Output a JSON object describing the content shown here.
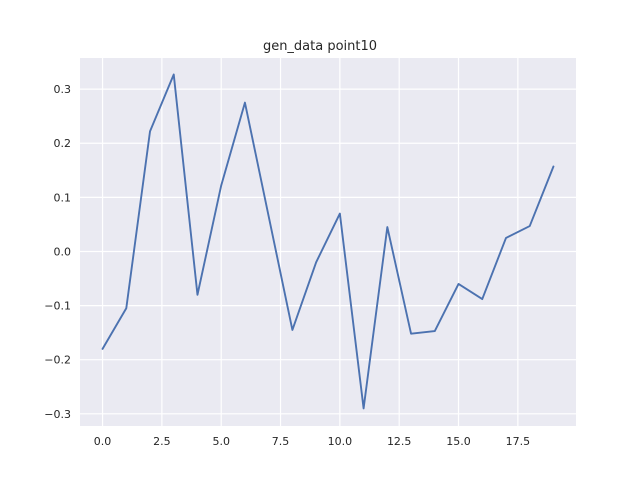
{
  "chart_data": {
    "type": "line",
    "title": "gen_data point10",
    "xlabel": "",
    "ylabel": "",
    "xlim": [
      -0.95,
      19.95
    ],
    "ylim": [
      -0.3225,
      0.3575
    ],
    "xticks": [
      0.0,
      2.5,
      5.0,
      7.5,
      10.0,
      12.5,
      15.0,
      17.5
    ],
    "xtick_labels": [
      "0.0",
      "2.5",
      "5.0",
      "7.5",
      "10.0",
      "12.5",
      "15.0",
      "17.5"
    ],
    "yticks": [
      -0.3,
      -0.2,
      -0.1,
      0.0,
      0.1,
      0.2,
      0.3
    ],
    "ytick_labels": [
      "−0.3",
      "−0.2",
      "−0.1",
      "0.0",
      "0.1",
      "0.2",
      "0.3"
    ],
    "grid": true,
    "background": "#EAEAF2",
    "line_color": "#4C72B0",
    "series": [
      {
        "x": [
          0,
          1,
          2,
          3,
          4,
          5,
          6,
          7,
          8,
          9,
          10,
          11,
          12,
          13,
          14,
          15,
          16,
          17,
          18,
          19
        ],
        "values": [
          -0.18,
          -0.105,
          0.222,
          0.327,
          -0.08,
          0.122,
          0.275,
          0.065,
          -0.145,
          -0.02,
          0.07,
          -0.29,
          0.045,
          -0.152,
          -0.147,
          -0.06,
          -0.088,
          0.025,
          0.047,
          0.157
        ]
      }
    ]
  }
}
